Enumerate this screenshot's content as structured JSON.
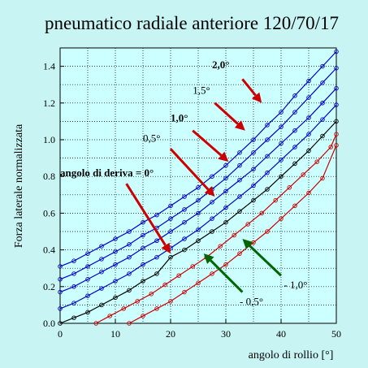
{
  "chart_data": {
    "type": "line",
    "title": "pneumatico radiale anteriore 120/70/17",
    "xlabel": "angolo di rollio [°]",
    "ylabel": "Forza laterale normalizzata",
    "xlim": [
      0,
      50
    ],
    "ylim": [
      0,
      1.5
    ],
    "xticks": [
      "0",
      "10",
      "20",
      "30",
      "40",
      "50"
    ],
    "yticks": [
      "0.0",
      "0.2",
      "0.4",
      "0.6",
      "0.8",
      "1.0",
      "1.2",
      "1.4"
    ],
    "grid": true,
    "x": [
      0,
      2.5,
      5,
      7.5,
      10,
      12.5,
      15,
      17.5,
      20,
      22.5,
      25,
      27.5,
      30,
      32.5,
      35,
      37.5,
      40,
      42.5,
      45,
      47.5,
      50
    ],
    "series": [
      {
        "name": "2,0°",
        "color": "#0000cc",
        "values": [
          0.31,
          0.34,
          0.38,
          0.42,
          0.46,
          0.5,
          0.55,
          0.59,
          0.64,
          0.69,
          0.74,
          0.8,
          0.86,
          0.93,
          1.0,
          1.08,
          1.15,
          1.24,
          1.32,
          1.4,
          1.48
        ]
      },
      {
        "name": "1,5°",
        "color": "#0000cc",
        "values": [
          0.24,
          0.27,
          0.31,
          0.35,
          0.39,
          0.43,
          0.48,
          0.52,
          0.57,
          0.62,
          0.67,
          0.73,
          0.79,
          0.86,
          0.93,
          1.0,
          1.07,
          1.15,
          1.23,
          1.31,
          1.39
        ]
      },
      {
        "name": "1,0°",
        "color": "#0000cc",
        "values": [
          0.17,
          0.2,
          0.24,
          0.28,
          0.32,
          0.36,
          0.41,
          0.45,
          0.5,
          0.55,
          0.6,
          0.66,
          0.72,
          0.78,
          0.84,
          0.91,
          0.98,
          1.05,
          1.12,
          1.2,
          1.28
        ]
      },
      {
        "name": "0,5°",
        "color": "#0000cc",
        "values": [
          0.08,
          0.11,
          0.15,
          0.19,
          0.23,
          0.27,
          0.32,
          0.36,
          0.41,
          0.46,
          0.51,
          0.57,
          0.63,
          0.69,
          0.75,
          0.82,
          0.89,
          0.96,
          1.03,
          1.11,
          1.19
        ]
      },
      {
        "name": "angolo di deriva = 0°",
        "color": "#000000",
        "values": [
          0.0,
          0.03,
          0.06,
          0.1,
          0.14,
          0.18,
          0.23,
          0.27,
          0.36,
          0.4,
          0.45,
          0.5,
          0.55,
          0.61,
          0.67,
          0.73,
          0.8,
          0.87,
          0.94,
          1.02,
          1.1
        ]
      },
      {
        "name": "- 0,5°",
        "color": "#cc0000",
        "x": [
          6.5,
          9,
          11.5,
          14,
          16.5,
          19,
          21.5,
          24,
          26.5,
          29,
          31.5,
          34,
          36.5,
          39,
          41.5,
          44,
          46.5,
          49,
          50
        ],
        "values": [
          0.0,
          0.04,
          0.08,
          0.12,
          0.16,
          0.21,
          0.26,
          0.31,
          0.36,
          0.42,
          0.48,
          0.54,
          0.6,
          0.67,
          0.74,
          0.81,
          0.88,
          0.96,
          1.03
        ]
      },
      {
        "name": "- 1,0°",
        "color": "#cc0000",
        "x": [
          12.5,
          15,
          17.5,
          20,
          22.5,
          25,
          27.5,
          30,
          32.5,
          35,
          37.5,
          40,
          42.5,
          45,
          47.5,
          50
        ],
        "values": [
          0.0,
          0.04,
          0.08,
          0.12,
          0.17,
          0.22,
          0.27,
          0.32,
          0.38,
          0.44,
          0.5,
          0.57,
          0.64,
          0.71,
          0.79,
          0.97
        ]
      }
    ],
    "annotations": [
      {
        "label": "2,0°",
        "bold": true,
        "color": "#000000",
        "text_x": 27.5,
        "text_y": 1.39,
        "arrow_color": "#cc0000",
        "arrow_from": [
          33,
          1.33
        ],
        "arrow_to": [
          36.5,
          1.2
        ]
      },
      {
        "label": "1,5°",
        "bold": false,
        "color": "#000000",
        "text_x": 24,
        "text_y": 1.25,
        "arrow_color": "#cc0000",
        "arrow_from": [
          28,
          1.2
        ],
        "arrow_to": [
          33.5,
          1.05
        ]
      },
      {
        "label": "1,0°",
        "bold": true,
        "color": "#000000",
        "text_x": 20,
        "text_y": 1.1,
        "arrow_color": "#cc0000",
        "arrow_from": [
          24,
          1.05
        ],
        "arrow_to": [
          30.5,
          0.88
        ]
      },
      {
        "label": "0,5°",
        "bold": false,
        "color": "#000000",
        "text_x": 15,
        "text_y": 0.99,
        "arrow_color": "#cc0000",
        "arrow_from": [
          20,
          0.95
        ],
        "arrow_to": [
          28,
          0.69
        ]
      },
      {
        "label": "angolo di deriva = 0°",
        "bold": true,
        "color": "#000000",
        "text_x": 0,
        "text_y": 0.8,
        "arrow_color": "#cc0000",
        "arrow_from": [
          12,
          0.76
        ],
        "arrow_to": [
          20,
          0.38
        ]
      },
      {
        "label": "- 1,0°",
        "bold": false,
        "color": "#000000",
        "text_x": 40.5,
        "text_y": 0.19,
        "arrow_color": "#006600",
        "arrow_from": [
          40,
          0.26
        ],
        "arrow_to": [
          33,
          0.46
        ]
      },
      {
        "label": "- 0,5°",
        "bold": false,
        "color": "#000000",
        "text_x": 32.5,
        "text_y": 0.1,
        "arrow_color": "#006600",
        "arrow_from": [
          33,
          0.17
        ],
        "arrow_to": [
          26,
          0.38
        ]
      }
    ]
  }
}
